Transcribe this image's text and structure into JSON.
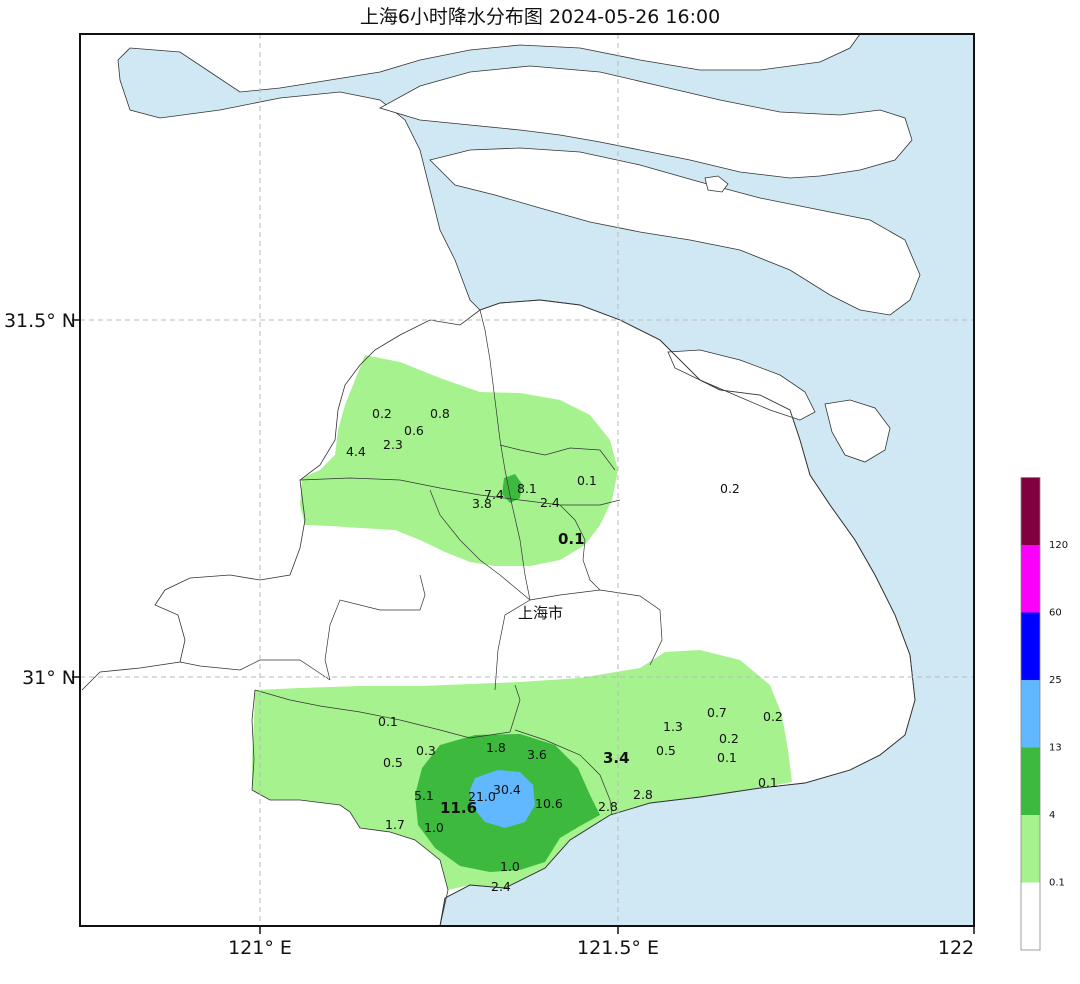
{
  "title": "上海6小时降水分布图 2024-05-26 16:00",
  "axes": {
    "x_ticks": [
      "121° E",
      "121.5° E",
      "122"
    ],
    "y_ticks": [
      "31.5° N",
      "31° N"
    ]
  },
  "city_label": "上海市",
  "legend": {
    "thresholds": [
      "0.1",
      "4",
      "13",
      "25",
      "60",
      "120"
    ],
    "colors": [
      "#ffffff",
      "#a6f28f",
      "#3dba3d",
      "#61b8ff",
      "#0000ff",
      "#fa00fa",
      "#800040"
    ]
  },
  "stations": [
    {
      "value": "0.2",
      "big": false
    },
    {
      "value": "0.8",
      "big": false
    },
    {
      "value": "0.6",
      "big": false
    },
    {
      "value": "2.3",
      "big": false
    },
    {
      "value": "4.4",
      "big": false
    },
    {
      "value": "7.4",
      "big": false
    },
    {
      "value": "8.1",
      "big": false
    },
    {
      "value": "3.8",
      "big": false
    },
    {
      "value": "2.4",
      "big": false
    },
    {
      "value": "0.1",
      "big": false
    },
    {
      "value": "0.1",
      "big": true
    },
    {
      "value": "0.2",
      "big": false
    },
    {
      "value": "0.1",
      "big": false
    },
    {
      "value": "0.3",
      "big": false
    },
    {
      "value": "0.5",
      "big": false
    },
    {
      "value": "1.8",
      "big": false
    },
    {
      "value": "3.6",
      "big": false
    },
    {
      "value": "3.4",
      "big": true
    },
    {
      "value": "1.3",
      "big": false
    },
    {
      "value": "0.7",
      "big": false
    },
    {
      "value": "0.2",
      "big": false
    },
    {
      "value": "0.5",
      "big": false
    },
    {
      "value": "0.2",
      "big": false
    },
    {
      "value": "0.1",
      "big": false
    },
    {
      "value": "0.1",
      "big": false
    },
    {
      "value": "5.1",
      "big": false
    },
    {
      "value": "11.6",
      "big": true
    },
    {
      "value": "21.0",
      "big": false
    },
    {
      "value": "30.4",
      "big": false
    },
    {
      "value": "10.6",
      "big": false
    },
    {
      "value": "2.8",
      "big": false
    },
    {
      "value": "2.8",
      "big": false
    },
    {
      "value": "1.7",
      "big": false
    },
    {
      "value": "1.0",
      "big": false
    },
    {
      "value": "1.0",
      "big": false
    },
    {
      "value": "2.4",
      "big": false
    }
  ]
}
